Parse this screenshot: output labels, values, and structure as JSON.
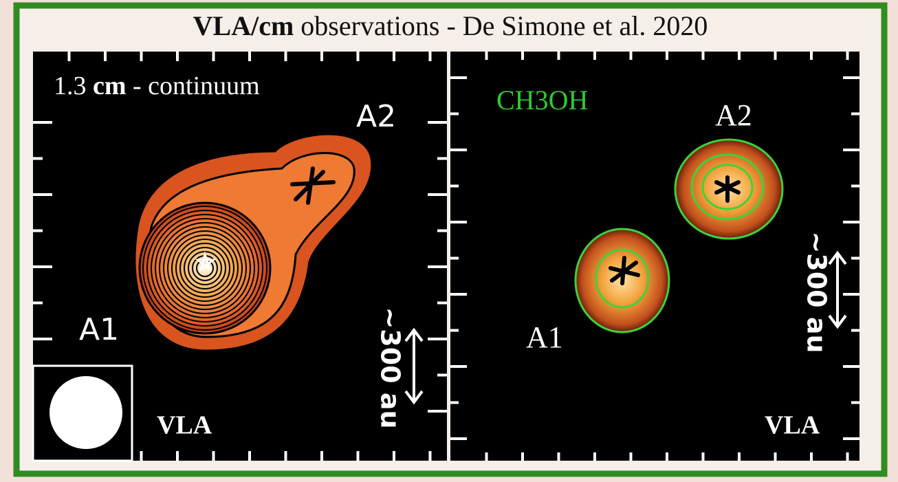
{
  "title": {
    "bold": "VLA/cm",
    "rest": " observations - De Simone et al. 2020"
  },
  "left_panel": {
    "label_prefix": "1.3 ",
    "label_bold": "cm",
    "label_suffix": " - continuum",
    "source_a1": "A1",
    "source_a2": "A2",
    "scale": "~300 au",
    "telescope": "VLA"
  },
  "right_panel": {
    "molecule": "CH3OH",
    "source_a1": "A1",
    "source_a2": "A2",
    "scale": "~300 au",
    "telescope": "VLA"
  }
}
